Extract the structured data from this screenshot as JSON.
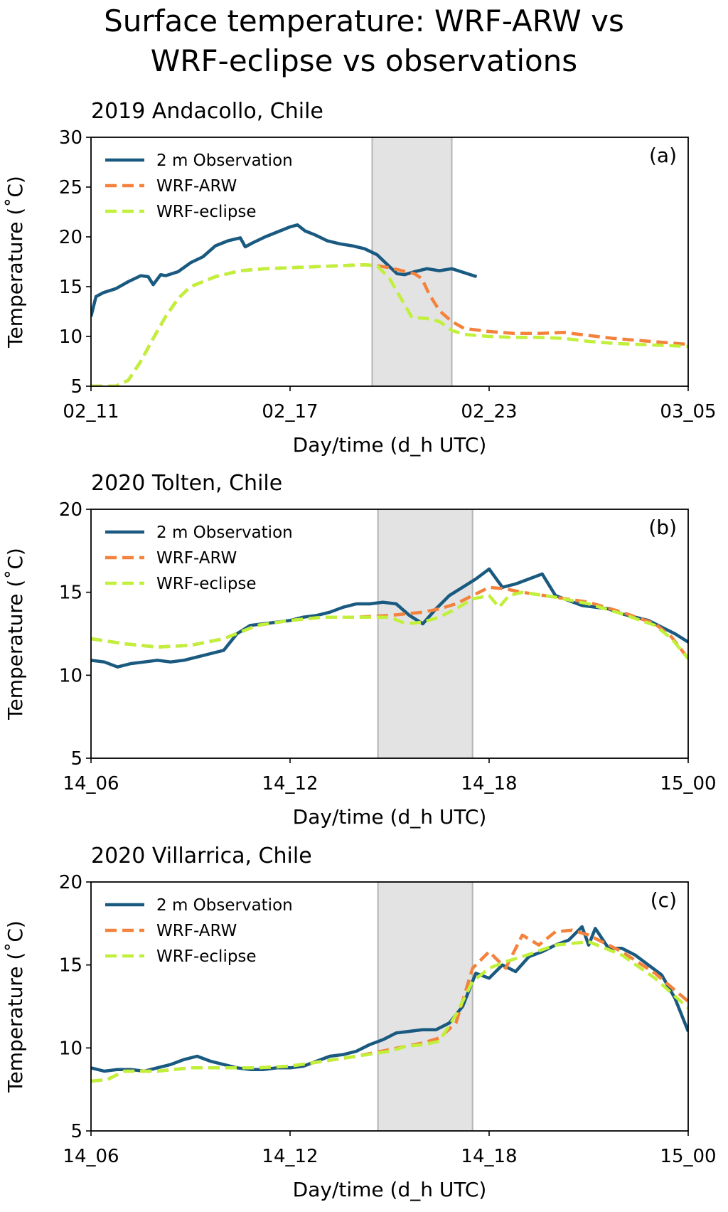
{
  "figure": {
    "title_line1": "Surface temperature: WRF-ARW vs",
    "title_line2": "WRF-eclipse vs observations"
  },
  "colors": {
    "observation": "#1a5a80",
    "wrf_arw": "#f4823c",
    "wrf_eclipse": "#c1f03a",
    "eclipse_shade": "#e3e3e3",
    "eclipse_edge": "#b4b4b4"
  },
  "chart_data": [
    {
      "type": "line",
      "panel": "(a)",
      "title": "2019 Andacollo, Chile",
      "xlabel": "Day/time (d_h UTC)",
      "ylabel": "Temperature (˚C)",
      "xlim": [
        0,
        24
      ],
      "ylim": [
        5,
        30
      ],
      "xticks": [
        0,
        6,
        12,
        18,
        24
      ],
      "xtick_labels": [
        "02_11",
        "02_17",
        "02_23",
        "03_05"
      ],
      "xtick_positions": [
        0,
        8,
        16,
        24
      ],
      "yticks": [
        5,
        10,
        15,
        20,
        25,
        30
      ],
      "eclipse_span": [
        11.3,
        14.5
      ],
      "legend": "top-left",
      "series": [
        {
          "name": "2 m Observation",
          "style": "solid",
          "x": [
            0,
            0.2,
            0.5,
            1,
            1.5,
            2,
            2.3,
            2.5,
            2.8,
            3,
            3.5,
            4,
            4.5,
            5,
            5.5,
            6,
            6.2,
            6.5,
            7,
            7.5,
            8,
            8.3,
            8.6,
            9,
            9.5,
            10,
            10.5,
            11,
            11.5,
            12,
            12.3,
            12.6,
            13,
            13.5,
            14,
            14.5,
            15,
            15.5
          ],
          "y": [
            12,
            14,
            14.4,
            14.8,
            15.5,
            16.1,
            16,
            15.2,
            16.2,
            16.1,
            16.5,
            17.4,
            18,
            19.1,
            19.6,
            19.9,
            19,
            19.4,
            20,
            20.5,
            21,
            21.2,
            20.6,
            20.2,
            19.6,
            19.3,
            19.1,
            18.8,
            18.2,
            17,
            16.3,
            16.2,
            16.5,
            16.8,
            16.6,
            16.8,
            16.4,
            16
          ]
        },
        {
          "name": "WRF-ARW",
          "style": "dashed",
          "x": [
            0,
            0.5,
            1,
            1.5,
            2,
            2.5,
            3,
            3.5,
            4,
            5,
            6,
            7,
            8,
            9,
            10,
            11,
            11.5,
            12,
            12.5,
            13,
            13.3,
            13.6,
            14,
            14.5,
            15,
            16,
            17,
            18,
            19,
            20,
            21,
            22,
            23,
            24
          ],
          "y": [
            5,
            5,
            5,
            5.6,
            7.5,
            9.8,
            12,
            13.8,
            15,
            16,
            16.6,
            16.8,
            16.9,
            17,
            17.1,
            17.2,
            17.1,
            16.9,
            16.6,
            16.3,
            15.8,
            14.2,
            12.6,
            11.5,
            10.8,
            10.5,
            10.3,
            10.3,
            10.4,
            10.1,
            9.8,
            9.6,
            9.4,
            9.2
          ]
        },
        {
          "name": "WRF-eclipse",
          "style": "dashed",
          "x": [
            0,
            0.5,
            1,
            1.5,
            2,
            2.5,
            3,
            3.5,
            4,
            5,
            6,
            7,
            8,
            9,
            10,
            11,
            11.5,
            12,
            12.3,
            12.6,
            12.9,
            13.5,
            14,
            14.5,
            15,
            16,
            17,
            18,
            19,
            20,
            21,
            22,
            23,
            24
          ],
          "y": [
            5,
            5,
            5,
            5.6,
            7.5,
            9.8,
            12,
            13.8,
            15,
            16,
            16.6,
            16.8,
            16.9,
            17,
            17.1,
            17.2,
            17.1,
            15.8,
            14.5,
            13.2,
            11.9,
            11.8,
            11.5,
            10.6,
            10.2,
            10,
            9.9,
            9.9,
            9.8,
            9.5,
            9.3,
            9.2,
            9.1,
            9
          ]
        }
      ]
    },
    {
      "type": "line",
      "panel": "(b)",
      "title": "2020 Tolten, Chile",
      "xlabel": "Day/time (d_h UTC)",
      "ylabel": "Temperature (˚C)",
      "xlim": [
        0,
        18
      ],
      "ylim": [
        5,
        20
      ],
      "xtick_labels": [
        "14_06",
        "14_12",
        "14_18",
        "15_00"
      ],
      "xtick_positions": [
        0,
        6,
        12,
        18
      ],
      "yticks": [
        5,
        10,
        15,
        20
      ],
      "eclipse_span": [
        8.65,
        11.5
      ],
      "legend": "top-left",
      "series": [
        {
          "name": "2 m Observation",
          "style": "solid",
          "x": [
            0,
            0.4,
            0.8,
            1.2,
            1.6,
            2,
            2.4,
            2.8,
            3.2,
            3.6,
            4,
            4.4,
            4.8,
            5.2,
            5.6,
            6,
            6.4,
            6.8,
            7.2,
            7.6,
            8,
            8.4,
            8.8,
            9.2,
            9.6,
            10,
            10.4,
            10.8,
            11.2,
            11.6,
            12,
            12.4,
            12.8,
            13.2,
            13.6,
            14,
            14.4,
            14.8,
            15.2,
            15.6,
            16,
            16.4,
            16.8,
            17.2,
            17.6,
            18
          ],
          "y": [
            10.9,
            10.8,
            10.5,
            10.7,
            10.8,
            10.9,
            10.8,
            10.9,
            11.1,
            11.3,
            11.5,
            12.5,
            13,
            13.1,
            13.2,
            13.3,
            13.5,
            13.6,
            13.8,
            14.1,
            14.3,
            14.3,
            14.4,
            14.3,
            13.6,
            13.1,
            14,
            14.8,
            15.3,
            15.8,
            16.4,
            15.3,
            15.5,
            15.8,
            16.1,
            14.8,
            14.5,
            14.2,
            14.1,
            14,
            13.7,
            13.5,
            13.3,
            12.9,
            12.5,
            12
          ]
        },
        {
          "name": "WRF-ARW",
          "style": "dashed",
          "x": [
            0,
            1,
            2,
            3,
            4,
            5,
            6,
            7,
            8,
            9,
            10,
            10.5,
            11,
            11.5,
            12,
            12.5,
            13,
            14,
            15,
            16,
            17,
            17.5,
            18
          ],
          "y": [
            12.2,
            11.9,
            11.7,
            11.8,
            12.2,
            13,
            13.3,
            13.5,
            13.5,
            13.6,
            13.8,
            14,
            14.3,
            14.8,
            15.3,
            15.2,
            15,
            14.7,
            14.4,
            13.8,
            13.1,
            12.3,
            11
          ]
        },
        {
          "name": "WRF-eclipse",
          "style": "dashed",
          "x": [
            0,
            1,
            2,
            3,
            4,
            5,
            6,
            7,
            8,
            9,
            9.5,
            10,
            10.5,
            11,
            11.5,
            12,
            12.3,
            12.6,
            13,
            14,
            15,
            16,
            17,
            17.5,
            18
          ],
          "y": [
            12.2,
            11.9,
            11.7,
            11.8,
            12.2,
            13,
            13.3,
            13.5,
            13.5,
            13.5,
            13.1,
            13.2,
            13.5,
            14,
            14.6,
            14.8,
            14.1,
            14.8,
            15,
            14.7,
            14.3,
            13.7,
            13,
            12.2,
            11
          ]
        }
      ]
    },
    {
      "type": "line",
      "panel": "(c)",
      "title": "2020 Villarrica, Chile",
      "xlabel": "Day/time (d_h UTC)",
      "ylabel": "Temperature (˚C)",
      "xlim": [
        0,
        18
      ],
      "ylim": [
        5,
        20
      ],
      "xtick_labels": [
        "14_06",
        "14_12",
        "14_18",
        "15_00"
      ],
      "xtick_positions": [
        0,
        6,
        12,
        18
      ],
      "yticks": [
        5,
        10,
        15,
        20
      ],
      "eclipse_span": [
        8.65,
        11.5
      ],
      "legend": "top-left",
      "series": [
        {
          "name": "2 m Observation",
          "style": "solid",
          "x": [
            0,
            0.4,
            0.8,
            1.2,
            1.6,
            2,
            2.4,
            2.8,
            3.2,
            3.6,
            4,
            4.4,
            4.8,
            5.2,
            5.6,
            6,
            6.4,
            6.8,
            7.2,
            7.6,
            8,
            8.4,
            8.8,
            9.2,
            9.6,
            10,
            10.4,
            10.8,
            11.2,
            11.6,
            12,
            12.4,
            12.8,
            13.2,
            13.6,
            14,
            14.4,
            14.8,
            15,
            15.2,
            15.6,
            16,
            16.4,
            16.8,
            17.2,
            17.6,
            18
          ],
          "y": [
            8.8,
            8.6,
            8.7,
            8.7,
            8.6,
            8.8,
            9,
            9.3,
            9.5,
            9.2,
            9,
            8.8,
            8.7,
            8.7,
            8.8,
            8.8,
            8.9,
            9.2,
            9.5,
            9.6,
            9.8,
            10.2,
            10.5,
            10.9,
            11,
            11.1,
            11.1,
            11.5,
            12.5,
            14.5,
            14.2,
            15,
            14.6,
            15.5,
            15.8,
            16.2,
            16.5,
            17.3,
            16.2,
            17.2,
            16,
            16,
            15.6,
            15,
            14.4,
            13,
            11
          ]
        },
        {
          "name": "WRF-ARW",
          "style": "dashed",
          "x": [
            0,
            0.5,
            1,
            2,
            3,
            4,
            5,
            6,
            7,
            8,
            9,
            10,
            10.5,
            11,
            11.5,
            12,
            12.5,
            13,
            13.5,
            14,
            14.5,
            15,
            16,
            17,
            18
          ],
          "y": [
            8,
            8.1,
            8.6,
            8.6,
            8.8,
            8.8,
            8.8,
            8.9,
            9.2,
            9.5,
            9.9,
            10.3,
            10.6,
            11.5,
            14.8,
            15.8,
            14.8,
            16.8,
            16.2,
            17,
            17.1,
            16.8,
            15.8,
            14.5,
            12.8
          ]
        },
        {
          "name": "WRF-eclipse",
          "style": "dashed",
          "x": [
            0,
            0.5,
            1,
            2,
            3,
            4,
            5,
            6,
            7,
            8,
            9,
            9.5,
            10,
            10.5,
            11,
            11.5,
            12,
            12.5,
            13,
            14,
            15,
            16,
            17,
            18
          ],
          "y": [
            8,
            8.1,
            8.6,
            8.6,
            8.8,
            8.8,
            8.8,
            8.9,
            9.2,
            9.5,
            9.8,
            10.1,
            10.2,
            10.4,
            12,
            14,
            14.8,
            15.2,
            15.5,
            16.2,
            16.4,
            15.6,
            14.2,
            12.4
          ]
        }
      ]
    }
  ]
}
